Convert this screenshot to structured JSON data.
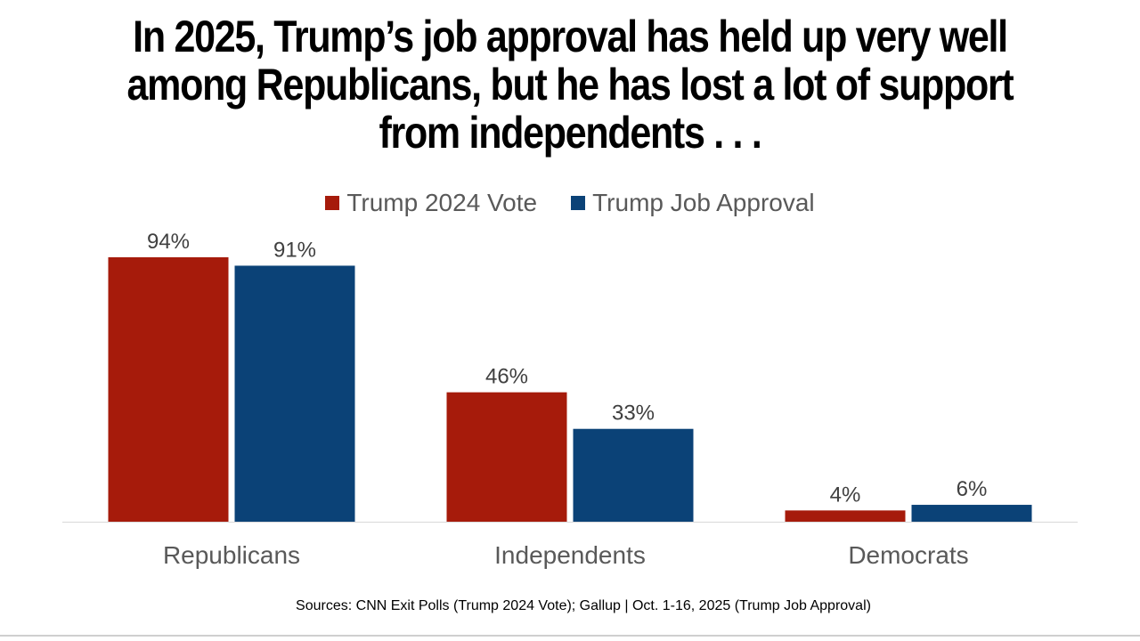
{
  "title_lines": [
    "In 2025, Trump’s job approval has held up very well",
    "among Republicans, but he has lost a lot of support",
    "from independents . . ."
  ],
  "source": "Sources: CNN Exit Polls (Trump 2024 Vote); Gallup | Oct. 1-16, 2025 (Trump Job Approval)",
  "chart_data": {
    "type": "bar",
    "title": "In 2025, Trump’s job approval has held up very well among Republicans, but he has lost a lot of support from independents . . .",
    "categories": [
      "Republicans",
      "Independents",
      "Democrats"
    ],
    "series": [
      {
        "name": "Trump 2024 Vote",
        "color": "#a61b0b",
        "values": [
          94,
          46,
          4
        ],
        "labels": [
          "94%",
          "46%",
          "4%"
        ]
      },
      {
        "name": "Trump Job Approval",
        "color": "#0b4277",
        "values": [
          91,
          33,
          6
        ],
        "labels": [
          "91%",
          "33%",
          "6%"
        ]
      }
    ],
    "xlabel": "",
    "ylabel": "",
    "ylim": [
      0,
      100
    ],
    "grid": false,
    "legend": "top-center",
    "axis_color": "#d9d9d9",
    "label_color": "#404040",
    "category_color": "#595959"
  }
}
